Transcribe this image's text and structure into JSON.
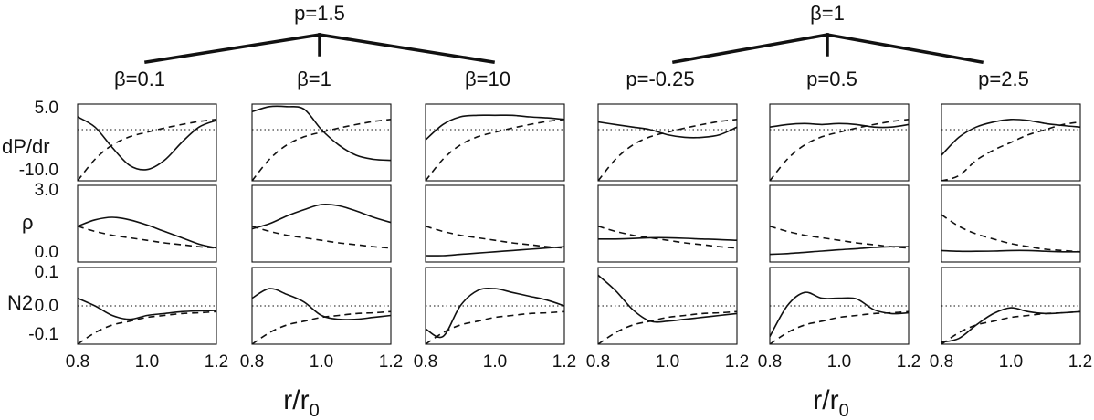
{
  "groups": [
    {
      "label": "p=1.5",
      "panels": [
        0,
        1,
        2
      ]
    },
    {
      "label": "β=1",
      "panels": [
        3,
        4,
        5
      ]
    }
  ],
  "column_labels": [
    "β=0.1",
    "β=1",
    "β=10",
    "p=-0.25",
    "p=0.5",
    "p=2.5"
  ],
  "row_labels": [
    "dP/dr",
    "ρ",
    "N2"
  ],
  "xlabel_main": "r/r",
  "xlabel_sub": "0",
  "xticks": [
    "0.8",
    "1.0",
    "1.2",
    "0.8",
    "1.0",
    "1.2",
    "0.8",
    "1.0",
    "1.2",
    "0.8",
    "1.0",
    "1.2",
    "0.8",
    "1.0",
    "1.2",
    "0.8",
    "1.0",
    "1.2"
  ],
  "ytick_labels": {
    "row0": [
      "5.0",
      "-10.0"
    ],
    "row1": [
      "3.0",
      "0.0"
    ],
    "row2": [
      "0.1",
      "0.0",
      "-0.1"
    ]
  },
  "chart_data": {
    "type": "line",
    "x_range": [
      0.8,
      1.2
    ],
    "rows": [
      {
        "name": "dP/dr",
        "ylim": [
          -10,
          5
        ],
        "zero_line": 0
      },
      {
        "name": "ρ",
        "ylim": [
          0,
          3
        ]
      },
      {
        "name": "N2",
        "ylim": [
          -0.1,
          0.1
        ],
        "zero_line": 0
      }
    ],
    "x": [
      0.8,
      0.85,
      0.9,
      0.95,
      1.0,
      1.05,
      1.1,
      1.15,
      1.2
    ],
    "reference": [
      [
        -10.0,
        -5.8,
        -3.0,
        -1.4,
        -0.5,
        0.3,
        1.0,
        1.6,
        2.0
      ],
      [
        1.4,
        1.2,
        1.05,
        0.95,
        0.85,
        0.75,
        0.68,
        0.6,
        0.55
      ],
      [
        -0.1,
        -0.07,
        -0.05,
        -0.04,
        -0.03,
        -0.025,
        -0.02,
        -0.018,
        -0.015
      ]
    ],
    "panels": [
      {
        "column": "β=0.1",
        "dPdr": [
          2.5,
          0.5,
          -3.5,
          -7.0,
          -7.8,
          -6.0,
          -2.5,
          0.5,
          1.8
        ],
        "rho": [
          1.4,
          1.65,
          1.75,
          1.65,
          1.45,
          1.2,
          0.95,
          0.7,
          0.55
        ],
        "N2": [
          0.02,
          0.0,
          -0.025,
          -0.035,
          -0.025,
          -0.02,
          -0.015,
          -0.013,
          -0.012
        ]
      },
      {
        "column": "β=1",
        "dPdr": [
          3.5,
          4.5,
          4.5,
          4.0,
          0.0,
          -3.0,
          -5.0,
          -5.8,
          -6.0
        ],
        "rho": [
          1.3,
          1.5,
          1.8,
          2.05,
          2.25,
          2.2,
          2.0,
          1.75,
          1.55
        ],
        "N2": [
          0.02,
          0.045,
          0.03,
          0.01,
          -0.025,
          -0.035,
          -0.035,
          -0.03,
          -0.025
        ]
      },
      {
        "column": "β=10",
        "dPdr": [
          -2.0,
          1.0,
          2.5,
          2.8,
          2.8,
          2.8,
          2.5,
          2.3,
          2.0
        ],
        "rho": [
          0.25,
          0.25,
          0.3,
          0.35,
          0.4,
          0.45,
          0.5,
          0.55,
          0.6
        ],
        "N2": [
          -0.06,
          -0.08,
          0.0,
          0.04,
          0.045,
          0.035,
          0.025,
          0.015,
          0.0
        ]
      },
      {
        "column": "p=-0.25",
        "dPdr": [
          1.5,
          1.0,
          0.5,
          0.0,
          -1.0,
          -1.5,
          -1.5,
          -1.0,
          0.5
        ],
        "rho": [
          0.9,
          0.9,
          0.92,
          0.95,
          0.95,
          0.93,
          0.9,
          0.88,
          0.85
        ],
        "N2": [
          0.08,
          0.04,
          -0.01,
          -0.04,
          -0.04,
          -0.035,
          -0.03,
          -0.025,
          -0.02
        ]
      },
      {
        "column": "p=0.5",
        "dPdr": [
          0.5,
          1.0,
          1.2,
          1.0,
          1.2,
          1.0,
          0.5,
          0.5,
          1.0
        ],
        "rho": [
          0.3,
          0.33,
          0.38,
          0.43,
          0.48,
          0.52,
          0.57,
          0.6,
          0.6
        ],
        "N2": [
          -0.08,
          0.0,
          0.035,
          0.02,
          0.02,
          0.018,
          -0.01,
          -0.02,
          -0.018
        ]
      },
      {
        "column": "p=2.5",
        "dPdr": [
          -5.0,
          -1.5,
          0.5,
          1.5,
          2.0,
          1.8,
          1.2,
          0.8,
          0.5
        ],
        "rho": [
          0.45,
          0.42,
          0.42,
          0.43,
          0.45,
          0.45,
          0.42,
          0.4,
          0.4
        ],
        "N2": [
          -0.095,
          -0.085,
          -0.05,
          -0.02,
          -0.005,
          -0.015,
          -0.02,
          -0.018,
          -0.015
        ]
      }
    ],
    "reference_p25": [
      [
        -13.0,
        -9.0,
        -6.0,
        -4.0,
        -2.5,
        -1.0,
        0.0,
        1.0,
        1.5
      ],
      [
        1.85,
        1.4,
        1.1,
        0.9,
        0.72,
        0.6,
        0.5,
        0.45,
        0.4
      ],
      [
        -0.1,
        -0.07,
        -0.05,
        -0.04,
        -0.03,
        -0.025,
        -0.02,
        -0.018,
        -0.015
      ]
    ]
  }
}
